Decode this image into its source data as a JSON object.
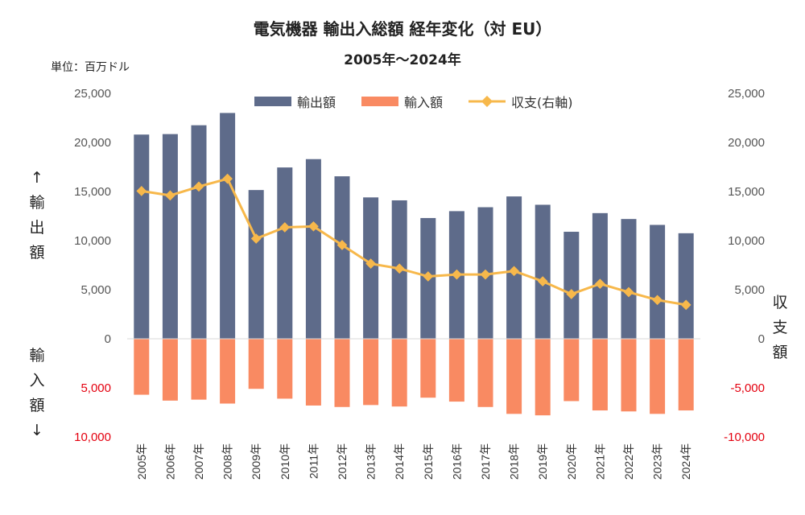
{
  "title": "電気機器 輸出入総額 経年変化（対 EU）",
  "subtitle": "2005年～2024年",
  "unit_label": "単位：百万ドル",
  "left_axis_top_label": [
    "↑",
    "輸",
    "出",
    "額"
  ],
  "left_axis_bottom_label": [
    "輸",
    "入",
    "額",
    "↓"
  ],
  "right_axis_label": [
    "収",
    "支",
    "額"
  ],
  "colors": {
    "export": "#5e6b8a",
    "import": "#f98a62",
    "balance": "#f7b84b",
    "negative_tick": "#e4000f"
  },
  "chart_data": {
    "type": "bar",
    "categories": [
      "2005年",
      "2006年",
      "2007年",
      "2008年",
      "2009年",
      "2010年",
      "2011年",
      "2012年",
      "2013年",
      "2014年",
      "2015年",
      "2016年",
      "2017年",
      "2018年",
      "2019年",
      "2020年",
      "2021年",
      "2022年",
      "2023年",
      "2024年"
    ],
    "series": [
      {
        "name": "輸出額",
        "type": "bar",
        "values": [
          20800,
          20850,
          21750,
          23000,
          15150,
          17450,
          18300,
          16550,
          14400,
          14100,
          12300,
          13000,
          13400,
          14500,
          13650,
          10900,
          12800,
          12200,
          11600,
          10750
        ]
      },
      {
        "name": "輸入額",
        "type": "bar",
        "values": [
          -5700,
          -6300,
          -6200,
          -6600,
          -5100,
          -6100,
          -6800,
          -6950,
          -6750,
          -6900,
          -6000,
          -6400,
          -6950,
          -7650,
          -7800,
          -6350,
          -7300,
          -7400,
          -7650,
          -7300
        ]
      },
      {
        "name": "収支(右軸)",
        "type": "line",
        "axis": "right",
        "values": [
          15050,
          14600,
          15500,
          16300,
          10200,
          11350,
          11450,
          9550,
          7650,
          7150,
          6350,
          6550,
          6550,
          6900,
          5850,
          4550,
          5600,
          4750,
          3950,
          3450
        ]
      }
    ],
    "left_axis": {
      "ylim": [
        -10000,
        25000
      ],
      "ticks": [
        25000,
        20000,
        15000,
        10000,
        5000,
        0,
        -5000,
        -10000
      ],
      "tick_labels": [
        "25,000",
        "20,000",
        "15,000",
        "10,000",
        "5,000",
        "0",
        "5,000",
        "10,000"
      ]
    },
    "right_axis": {
      "ylim": [
        -10000,
        25000
      ],
      "ticks": [
        25000,
        20000,
        15000,
        10000,
        5000,
        0,
        -5000,
        -10000
      ],
      "tick_labels": [
        "25,000",
        "20,000",
        "15,000",
        "10,000",
        "5,000",
        "0",
        "-5,000",
        "-10,000"
      ]
    },
    "legend_position": "top",
    "grid": false
  }
}
